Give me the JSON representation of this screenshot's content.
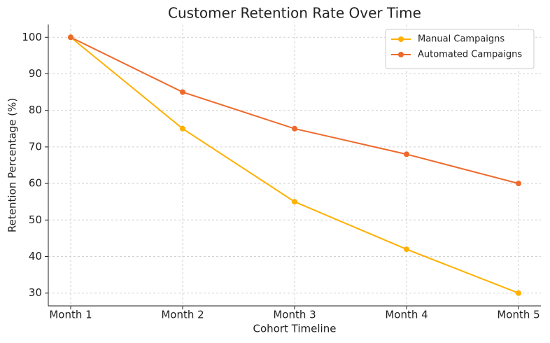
{
  "chart_data": {
    "type": "line",
    "title": "Customer Retention Rate Over Time",
    "x_label": "Cohort Timeline",
    "y_label": "Retention Percentage (%)",
    "categories": [
      "Month 1",
      "Month 2",
      "Month 3",
      "Month 4",
      "Month 5"
    ],
    "series": [
      {
        "name": "Manual Campaigns",
        "color": "#ffb000",
        "values": [
          100,
          75,
          55,
          42,
          30
        ]
      },
      {
        "name": "Automated Campaigns",
        "color": "#ee6a2b",
        "values": [
          100,
          85,
          75,
          68,
          60
        ]
      }
    ],
    "ylim": [
      26.5,
      103.5
    ],
    "yticks": [
      30,
      40,
      50,
      60,
      70,
      80,
      90,
      100
    ],
    "grid": true,
    "legend": "upper right"
  }
}
